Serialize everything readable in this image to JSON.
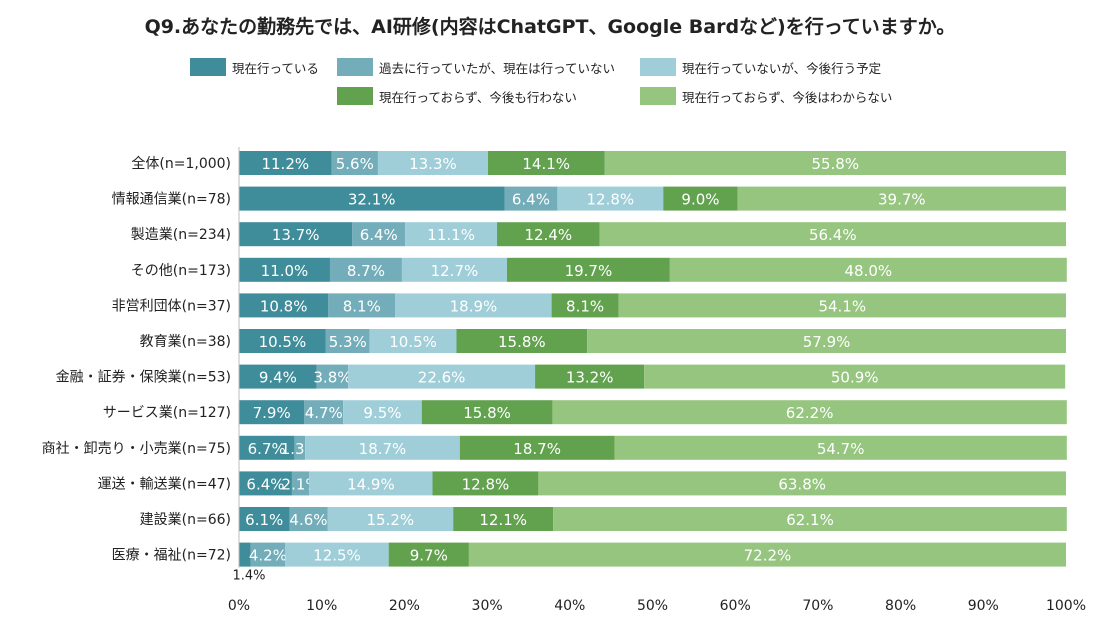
{
  "chart_data": {
    "type": "bar",
    "orientation": "horizontal",
    "stacked": true,
    "title": "Q9.あなたの勤務先では、AI研修(内容はChatGPT、Google Bardなど)を行っていますか。",
    "categories": [
      "全体(n=1,000)",
      "情報通信業(n=78)",
      "製造業(n=234)",
      "その他(n=173)",
      "非営利団体(n=37)",
      "教育業(n=38)",
      "金融・証券・保険業(n=53)",
      "サービス業(n=127)",
      "商社・卸売り・小売業(n=75)",
      "運送・輸送業(n=47)",
      "建設業(n=66)",
      "医療・福祉(n=72)"
    ],
    "series": [
      {
        "name": "現在行っている",
        "color": "#3f8c9a",
        "values": [
          11.2,
          32.1,
          13.7,
          11.0,
          10.8,
          10.5,
          9.4,
          7.9,
          6.7,
          6.4,
          6.1,
          1.4
        ],
        "labels": [
          "11.2%",
          "32.1%",
          "13.7%",
          "11.0%",
          "10.8%",
          "10.5%",
          "9.4%",
          "7.9%",
          "6.7%",
          "6.4%",
          "6.1%",
          ""
        ]
      },
      {
        "name": "過去に行っていたが、現在は行っていない",
        "color": "#72adb9",
        "values": [
          5.6,
          6.4,
          6.4,
          8.7,
          8.1,
          5.3,
          3.8,
          4.7,
          1.3,
          2.1,
          4.6,
          4.2
        ],
        "labels": [
          "5.6%",
          "6.4%",
          "6.4%",
          "8.7%",
          "8.1%",
          "5.3%",
          "3.8%",
          "4.7%",
          "1.3%",
          "2.1%",
          "4.6%",
          "4.2%"
        ]
      },
      {
        "name": "現在行っていないが、今後行う予定",
        "color": "#9fced9",
        "values": [
          13.3,
          12.8,
          11.1,
          12.7,
          18.9,
          10.5,
          22.6,
          9.5,
          18.7,
          14.9,
          15.2,
          12.5
        ],
        "labels": [
          "13.3%",
          "12.8%",
          "11.1%",
          "12.7%",
          "18.9%",
          "10.5%",
          "22.6%",
          "9.5%",
          "18.7%",
          "14.9%",
          "15.2%",
          "12.5%"
        ]
      },
      {
        "name": "現在行っておらず、今後も行わない",
        "color": "#62a24f",
        "values": [
          14.1,
          9.0,
          12.4,
          19.7,
          8.1,
          15.8,
          13.2,
          15.8,
          18.7,
          12.8,
          12.1,
          9.7
        ],
        "labels": [
          "14.1%",
          "9.0%",
          "12.4%",
          "19.7%",
          "8.1%",
          "15.8%",
          "13.2%",
          "15.8%",
          "18.7%",
          "12.8%",
          "12.1%",
          "9.7%"
        ]
      },
      {
        "name": "現在行っておらず、今後はわからない",
        "color": "#96c57f",
        "values": [
          55.8,
          39.7,
          56.4,
          48.0,
          54.1,
          57.9,
          50.9,
          62.2,
          54.7,
          63.8,
          62.1,
          72.2
        ],
        "labels": [
          "55.8%",
          "39.7%",
          "56.4%",
          "48.0%",
          "54.1%",
          "57.9%",
          "50.9%",
          "62.2%",
          "54.7%",
          "63.8%",
          "62.1%",
          "72.2%"
        ]
      }
    ],
    "xlim": [
      0,
      100
    ],
    "xticks": [
      "0%",
      "10%",
      "20%",
      "30%",
      "40%",
      "50%",
      "60%",
      "70%",
      "80%",
      "90%",
      "100%"
    ],
    "annotations": [
      {
        "category": "医療・福祉(n=72)",
        "series": "現在行っている",
        "text": "1.4%"
      }
    ],
    "legend": "top",
    "grid": false
  }
}
